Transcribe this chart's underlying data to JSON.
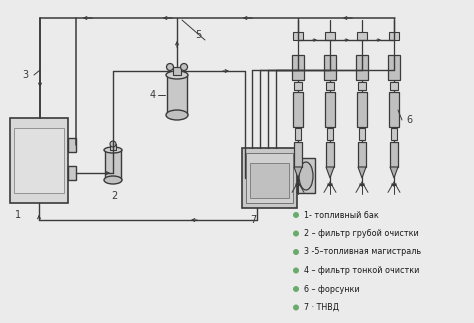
{
  "background_color": "#ebebeb",
  "legend_items": [
    "1- топливный бак",
    "2 – фильтр грубой очистки",
    "3 -5–топливная магистраль",
    "4 – фильтр тонкой очистки",
    "6 – форсунки",
    "7 · ТНВД"
  ],
  "bullet_color": "#6aaa6a",
  "text_color": "#1a1a1a",
  "line_color": "#3a3a3a",
  "figsize": [
    4.74,
    3.23
  ],
  "dpi": 100
}
